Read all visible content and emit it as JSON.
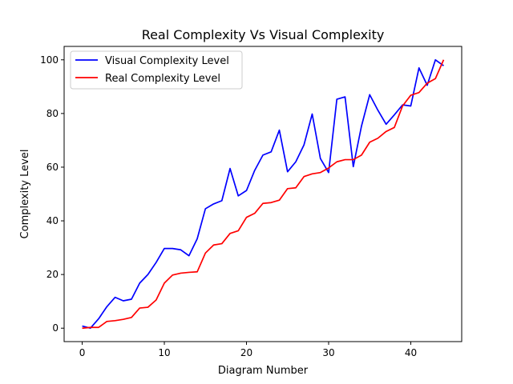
{
  "chart_data": {
    "type": "line",
    "title": "Real Complexity Vs Visual Complexity",
    "xlabel": "Diagram Number",
    "ylabel": "Complexity Level",
    "xlim": [
      -2.2,
      46.2
    ],
    "ylim": [
      -5,
      105
    ],
    "xticks": [
      0,
      10,
      20,
      30,
      40
    ],
    "yticks": [
      0,
      20,
      40,
      60,
      80,
      100
    ],
    "grid": false,
    "legend_position": "top-left",
    "x": [
      0,
      1,
      2,
      3,
      4,
      5,
      6,
      7,
      8,
      9,
      10,
      11,
      12,
      13,
      14,
      15,
      16,
      17,
      18,
      19,
      20,
      21,
      22,
      23,
      24,
      25,
      26,
      27,
      28,
      29,
      30,
      31,
      32,
      33,
      34,
      35,
      36,
      37,
      38,
      39,
      40,
      41,
      42,
      43,
      44
    ],
    "series": [
      {
        "name": "Visual Complexity Level",
        "color": "#0000ff",
        "values": [
          0.8,
          0,
          3.5,
          8,
          11.5,
          10.2,
          10.8,
          16.8,
          20,
          24.5,
          29.7,
          29.7,
          29.2,
          27,
          33.3,
          44.5,
          46.3,
          47.5,
          59.5,
          49.3,
          51.3,
          58.8,
          64.5,
          65.7,
          73.8,
          58.3,
          62,
          68.3,
          79.8,
          63.2,
          58,
          85.3,
          86.2,
          60.2,
          75.3,
          87,
          81.2,
          76,
          79.5,
          83.2,
          82.8,
          97,
          90.5,
          100,
          97.8
        ]
      },
      {
        "name": "Real Complexity Level",
        "color": "#ff0000",
        "values": [
          0,
          0.3,
          0.3,
          2.5,
          2.8,
          3.3,
          4,
          7.5,
          7.8,
          10.5,
          16.8,
          19.8,
          20.5,
          20.8,
          21,
          28,
          31,
          31.5,
          35.3,
          36.3,
          41.3,
          42.8,
          46.5,
          46.8,
          47.7,
          52,
          52.3,
          56.5,
          57.5,
          58,
          59.7,
          62,
          62.8,
          62.8,
          64.5,
          69.3,
          70.8,
          73.3,
          74.8,
          82.8,
          86.8,
          87.8,
          91.3,
          93,
          100
        ]
      }
    ]
  }
}
